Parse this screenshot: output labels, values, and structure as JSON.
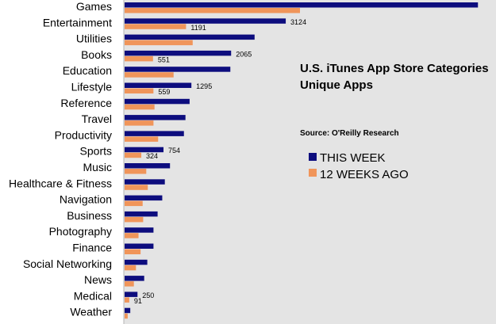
{
  "chart_data": {
    "type": "bar",
    "orientation": "horizontal",
    "title": "U.S. iTunes App Store Categories",
    "subtitle": "Unique Apps",
    "source": "Source: O'Reilly Research",
    "legend_position": "right",
    "grid": false,
    "xlim": [
      0,
      7000
    ],
    "categories": [
      "Games",
      "Entertainment",
      "Utilities",
      "Books",
      "Education",
      "Lifestyle",
      "Reference",
      "Travel",
      "Productivity",
      "Sports",
      "Music",
      "Healthcare & Fitness",
      "Navigation",
      "Business",
      "Photography",
      "Finance",
      "Social Networking",
      "News",
      "Medical",
      "Weather"
    ],
    "series": [
      {
        "name": "THIS WEEK",
        "color": "#0d0d7e",
        "values": [
          6850,
          3124,
          2520,
          2065,
          2050,
          1295,
          1260,
          1180,
          1150,
          754,
          880,
          780,
          730,
          640,
          560,
          560,
          440,
          380,
          250,
          110
        ],
        "labels": [
          "",
          "3124",
          "",
          "2065",
          "",
          "1295",
          "",
          "",
          "",
          "754",
          "",
          "",
          "",
          "",
          "",
          "",
          "",
          "",
          "250",
          ""
        ]
      },
      {
        "name": "12 WEEKS AGO",
        "color": "#f0955a",
        "values": [
          3400,
          1191,
          1320,
          551,
          950,
          559,
          580,
          560,
          650,
          324,
          420,
          450,
          350,
          360,
          270,
          310,
          220,
          180,
          91,
          60
        ],
        "labels": [
          "",
          "1191",
          "",
          "551",
          "",
          "559",
          "",
          "",
          "",
          "324",
          "",
          "",
          "",
          "",
          "",
          "",
          "",
          "",
          "91",
          ""
        ]
      }
    ]
  }
}
